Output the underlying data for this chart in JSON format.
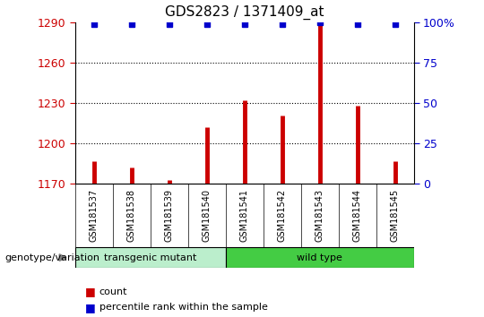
{
  "title": "GDS2823 / 1371409_at",
  "samples": [
    "GSM181537",
    "GSM181538",
    "GSM181539",
    "GSM181540",
    "GSM181541",
    "GSM181542",
    "GSM181543",
    "GSM181544",
    "GSM181545"
  ],
  "counts": [
    1187,
    1182,
    1173,
    1212,
    1232,
    1221,
    1290,
    1228,
    1187
  ],
  "percentile_ranks": [
    99,
    99,
    99,
    99,
    99,
    99,
    100,
    99,
    99
  ],
  "y_min": 1170,
  "y_max": 1290,
  "y_ticks": [
    1170,
    1200,
    1230,
    1260,
    1290
  ],
  "y2_ticks": [
    0,
    25,
    50,
    75,
    100
  ],
  "y2_labels": [
    "0",
    "25",
    "50",
    "75",
    "100%"
  ],
  "bar_color": "#cc0000",
  "dot_color": "#0000cc",
  "transgenic_color": "#bbeecc",
  "wildtype_color": "#44cc44",
  "transgenic_label": "transgenic mutant",
  "wildtype_label": "wild type",
  "transgenic_samples": 4,
  "wildtype_samples": 5,
  "genotype_label": "genotype/variation",
  "legend_count": "count",
  "legend_percentile": "percentile rank within the sample",
  "sample_bg_color": "#cccccc",
  "plot_bg_color": "#ffffff"
}
